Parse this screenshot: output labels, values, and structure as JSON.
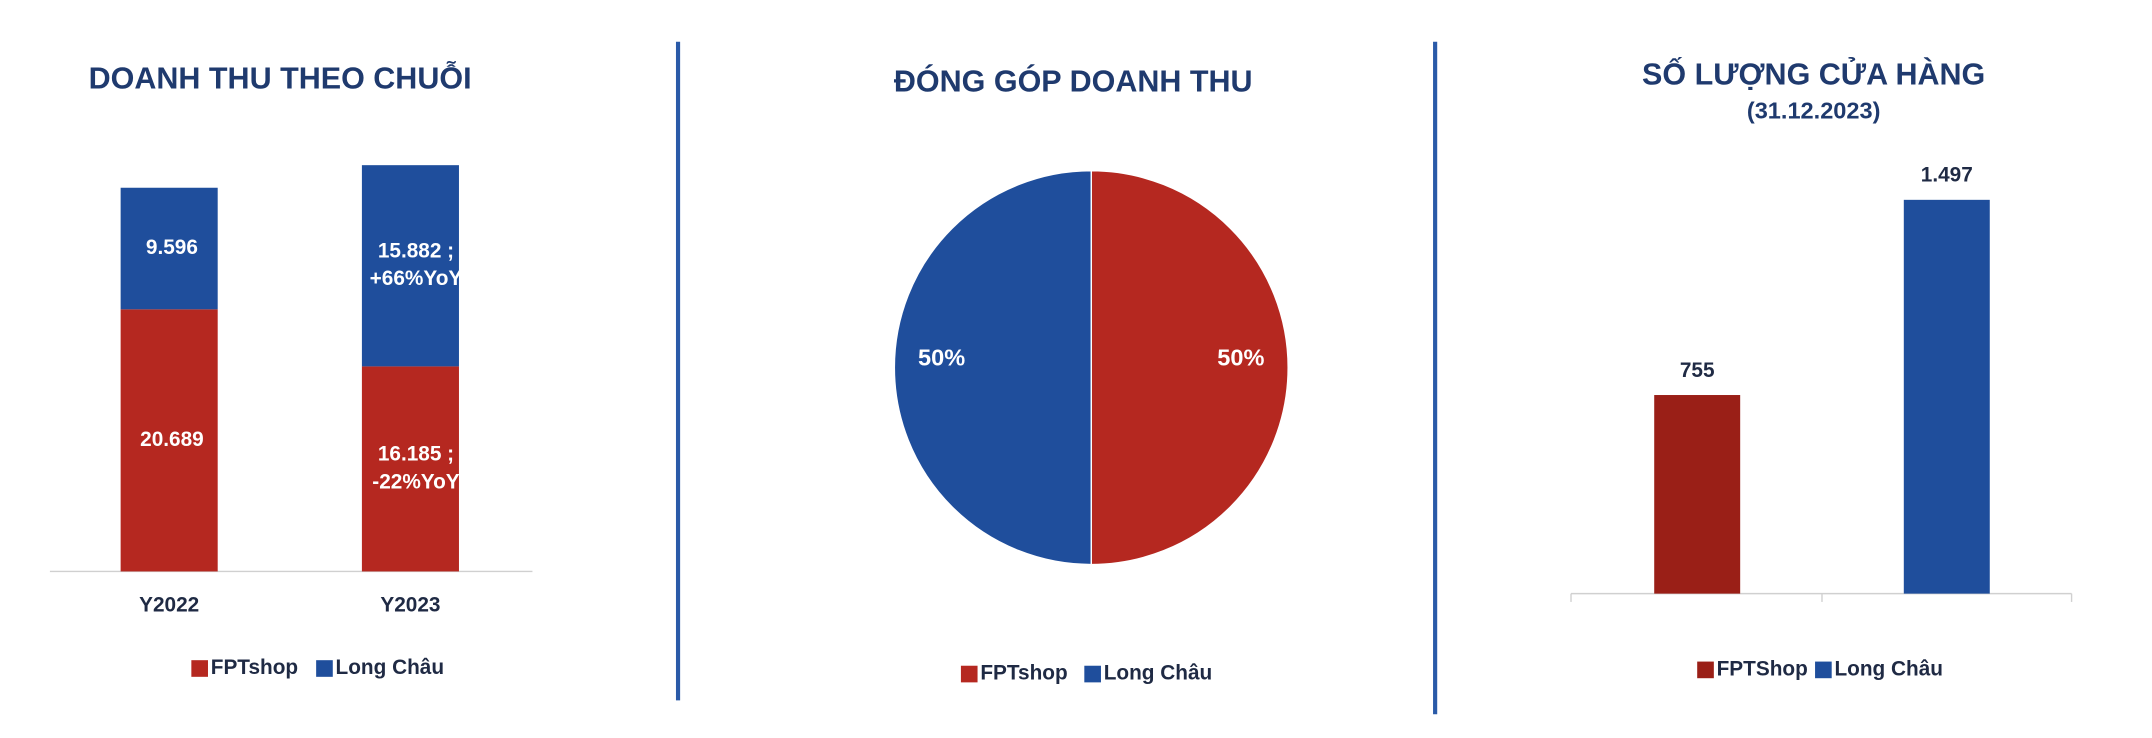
{
  "chart_data": [
    {
      "type": "stacked_bar",
      "title": "DOANH THU THEO CHUỖI",
      "categories": [
        "Y2022",
        "Y2023"
      ],
      "series": [
        {
          "name": "FPTshop",
          "color": "#b52820",
          "values": [
            20689,
            16185
          ],
          "value_labels": [
            [
              "20.689"
            ],
            [
              "16.185 ;",
              "-22%YoY"
            ]
          ]
        },
        {
          "name": "Long Châu",
          "color": "#1f4e9c",
          "values": [
            9596,
            15882
          ],
          "value_labels": [
            [
              "9.596"
            ],
            [
              "15.882 ;",
              "+66%YoY"
            ]
          ]
        }
      ]
    },
    {
      "type": "pie",
      "title": "ĐÓNG GÓP DOANH THU",
      "categories": [
        "FPTshop",
        "Long Châu"
      ],
      "values": [
        50,
        50
      ],
      "value_labels": [
        "50%",
        "50%"
      ],
      "colors": [
        "#b52820",
        "#1f4e9c"
      ]
    },
    {
      "type": "bar",
      "title": "SỐ LƯỢNG CỬA HÀNG",
      "subtitle": "(31.12.2023)",
      "categories": [
        "FPTShop",
        "Long Châu"
      ],
      "values": [
        755,
        1497
      ],
      "value_labels": [
        "755",
        "1.497"
      ],
      "colors": [
        "#9a1f17",
        "#1f4e9c"
      ]
    }
  ]
}
